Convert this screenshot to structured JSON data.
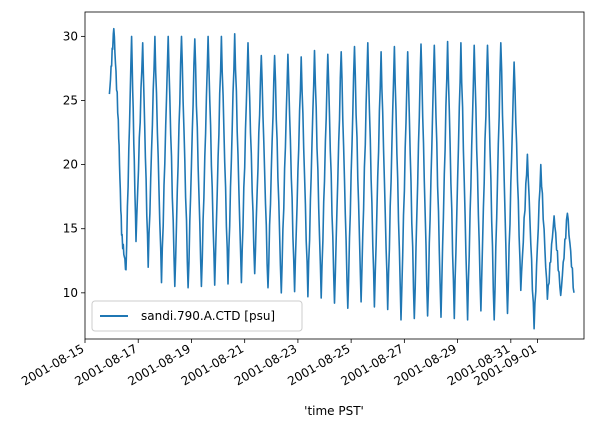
{
  "chart_data": {
    "type": "line",
    "title": "",
    "xlabel": "'time PST'",
    "ylabel": "",
    "x_range": [
      "2001-08-15",
      "2001-09-02T18:00"
    ],
    "ylim": [
      6.4,
      31.9
    ],
    "yticks": [
      10,
      15,
      20,
      25,
      30
    ],
    "xticks": [
      "2001-08-15",
      "2001-08-17",
      "2001-08-19",
      "2001-08-21",
      "2001-08-23",
      "2001-08-25",
      "2001-08-27",
      "2001-08-29",
      "2001-08-31",
      "2001-09-01"
    ],
    "grid": false,
    "legend": {
      "position": "lower-left",
      "entries": [
        "sandi.790.A.CTD [psu]"
      ]
    },
    "series": [
      {
        "name": "sandi.790.A.CTD [psu]",
        "color": "#1f77b4",
        "x": [
          "2001-08-15T22:00",
          "2001-08-16T02:00",
          "2001-08-16T06:00",
          "2001-08-16T09:00",
          "2001-08-16T13:00",
          "2001-08-16T18:00",
          "2001-08-16T22:00",
          "2001-08-17T04:00",
          "2001-08-17T09:00",
          "2001-08-17T15:00",
          "2001-08-17T21:00",
          "2001-08-18T03:00",
          "2001-08-18T09:00",
          "2001-08-18T15:00",
          "2001-08-18T21:00",
          "2001-08-19T03:00",
          "2001-08-19T09:00",
          "2001-08-19T15:00",
          "2001-08-19T21:00",
          "2001-08-20T03:00",
          "2001-08-20T09:00",
          "2001-08-20T15:00",
          "2001-08-20T21:00",
          "2001-08-21T03:00",
          "2001-08-21T09:00",
          "2001-08-21T15:00",
          "2001-08-21T21:00",
          "2001-08-22T03:00",
          "2001-08-22T09:00",
          "2001-08-22T15:00",
          "2001-08-22T21:00",
          "2001-08-23T03:00",
          "2001-08-23T09:00",
          "2001-08-23T15:00",
          "2001-08-23T21:00",
          "2001-08-24T03:00",
          "2001-08-24T09:00",
          "2001-08-24T15:00",
          "2001-08-24T21:00",
          "2001-08-25T03:00",
          "2001-08-25T09:00",
          "2001-08-25T15:00",
          "2001-08-25T21:00",
          "2001-08-26T03:00",
          "2001-08-26T09:00",
          "2001-08-26T15:00",
          "2001-08-26T21:00",
          "2001-08-27T03:00",
          "2001-08-27T09:00",
          "2001-08-27T15:00",
          "2001-08-27T21:00",
          "2001-08-28T03:00",
          "2001-08-28T09:00",
          "2001-08-28T15:00",
          "2001-08-28T21:00",
          "2001-08-29T03:00",
          "2001-08-29T09:00",
          "2001-08-29T15:00",
          "2001-08-29T21:00",
          "2001-08-30T03:00",
          "2001-08-30T09:00",
          "2001-08-30T15:00",
          "2001-08-30T21:00",
          "2001-08-31T03:00",
          "2001-08-31T09:00",
          "2001-08-31T15:00",
          "2001-08-31T21:00",
          "2001-09-01T03:00",
          "2001-09-01T09:00",
          "2001-09-01T15:00",
          "2001-09-01T21:00",
          "2001-09-02T03:00",
          "2001-09-02T09:00"
        ],
        "y": [
          25.5,
          30.6,
          23.5,
          14.5,
          11.8,
          30.0,
          14.0,
          29.5,
          12.0,
          30.0,
          10.8,
          30.0,
          10.5,
          30.0,
          10.4,
          29.8,
          10.5,
          30.0,
          10.6,
          30.0,
          10.7,
          30.2,
          10.8,
          29.5,
          11.5,
          28.5,
          10.4,
          28.5,
          10.0,
          28.6,
          10.1,
          28.4,
          9.7,
          28.9,
          9.6,
          28.6,
          9.2,
          28.8,
          8.8,
          29.2,
          9.3,
          29.5,
          8.9,
          28.8,
          8.7,
          29.2,
          7.9,
          28.8,
          8.0,
          29.4,
          8.2,
          29.3,
          8.1,
          29.6,
          8.0,
          29.5,
          7.9,
          29.3,
          8.6,
          29.3,
          7.9,
          29.5,
          8.4,
          28.0,
          10.2,
          20.8,
          7.2,
          20.0,
          9.5,
          16.0,
          9.8,
          16.2,
          10.0
        ]
      }
    ]
  }
}
